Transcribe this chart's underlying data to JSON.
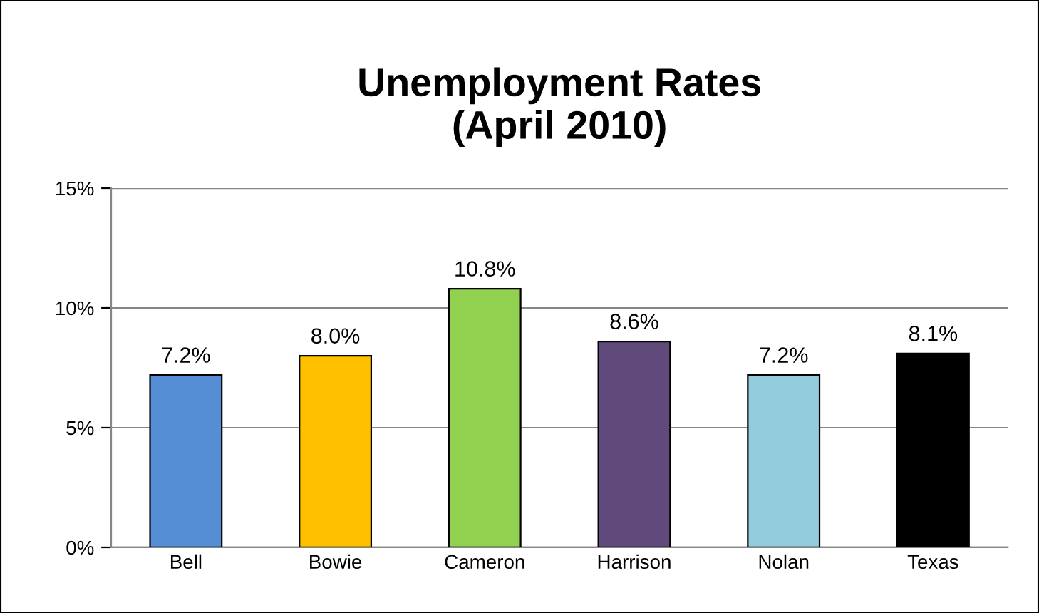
{
  "chart_data": {
    "type": "bar",
    "title": "Unemployment Rates\n(April 2010)",
    "categories": [
      "Bell",
      "Bowie",
      "Cameron",
      "Harrison",
      "Nolan",
      "Texas"
    ],
    "values": [
      7.2,
      8.0,
      10.8,
      8.6,
      7.2,
      8.1
    ],
    "colors": [
      "#558ed5",
      "#ffc000",
      "#92d050",
      "#604a7b",
      "#93cddd",
      "#000000"
    ],
    "value_labels": [
      "7.2%",
      "8.0%",
      "10.8%",
      "8.6%",
      "7.2%",
      "8.1%"
    ],
    "ylim": [
      0,
      15
    ],
    "yticks": [
      {
        "value": 0,
        "label": "0%"
      },
      {
        "value": 5,
        "label": "5%"
      },
      {
        "value": 10,
        "label": "10%"
      },
      {
        "value": 15,
        "label": "15%"
      }
    ],
    "grid": "y",
    "legend": false
  }
}
